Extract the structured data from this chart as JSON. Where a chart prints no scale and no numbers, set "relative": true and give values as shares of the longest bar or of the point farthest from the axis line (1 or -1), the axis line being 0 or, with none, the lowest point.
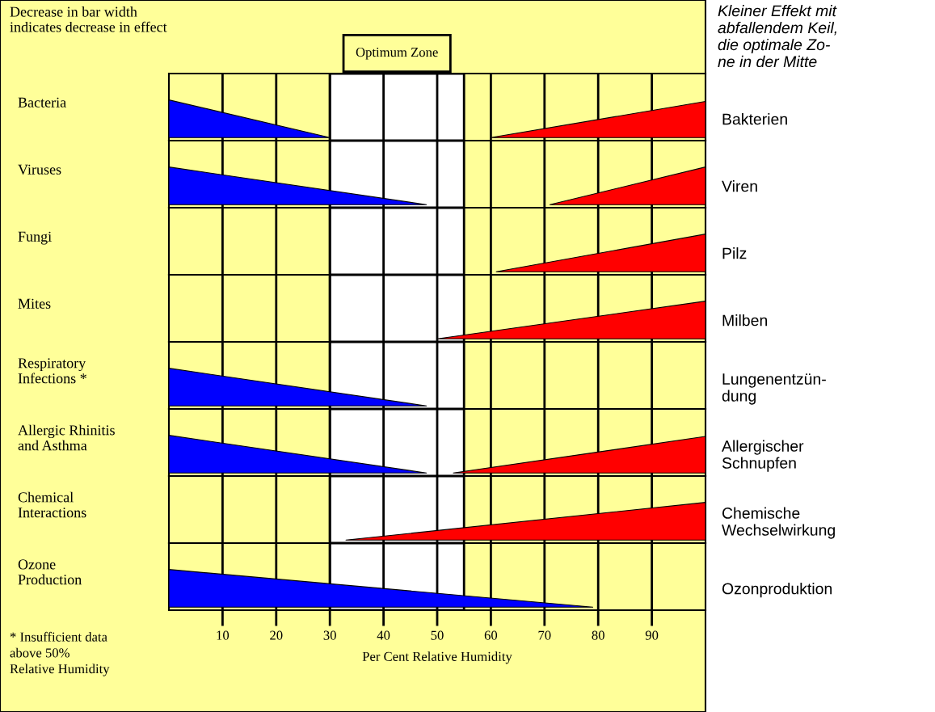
{
  "chart_data": [
    {
      "type": "area",
      "relative": true,
      "ylabel": "Bacteria",
      "xlim": [
        0,
        100
      ],
      "xticks": [
        10,
        20,
        30,
        40,
        50,
        60,
        70,
        80,
        90
      ],
      "grid": "x",
      "tick_labels": false,
      "bands": [
        {
          "axis": "x",
          "from": 30,
          "to": 55,
          "label": "Optimum Zone",
          "color": "#ffffff"
        }
      ],
      "annotations": [
        "Bakterien",
        "Decrease in bar width\nindicates decrease in effect",
        "Kleiner Effekt mit\nabfallendem Keil,\ndie optimale Zo-\nne in der Mitte"
      ],
      "series": [
        {
          "color": "#0000ff",
          "x": [
            0,
            30
          ],
          "values": [
            1,
            0
          ]
        },
        {
          "color": "#ff0000",
          "x": [
            60,
            100
          ],
          "values": [
            0,
            0.96
          ]
        }
      ]
    },
    {
      "type": "area",
      "relative": true,
      "ylabel": "Viruses",
      "xlim": [
        0,
        100
      ],
      "xticks": [
        10,
        20,
        30,
        40,
        50,
        60,
        70,
        80,
        90
      ],
      "grid": "x",
      "tick_labels": false,
      "bands": [
        {
          "axis": "x",
          "from": 30,
          "to": 55,
          "color": "#ffffff"
        }
      ],
      "annotations": [
        "Viren"
      ],
      "series": [
        {
          "color": "#0000ff",
          "x": [
            0,
            48
          ],
          "values": [
            1,
            0
          ]
        },
        {
          "color": "#ff0000",
          "x": [
            71,
            100
          ],
          "values": [
            0,
            1
          ]
        }
      ]
    },
    {
      "type": "area",
      "relative": true,
      "ylabel": "Fungi",
      "xlim": [
        0,
        100
      ],
      "xticks": [
        10,
        20,
        30,
        40,
        50,
        60,
        70,
        80,
        90
      ],
      "grid": "x",
      "tick_labels": false,
      "bands": [
        {
          "axis": "x",
          "from": 30,
          "to": 55,
          "color": "#ffffff"
        }
      ],
      "annotations": [
        "Pilz"
      ],
      "series": [
        {
          "color": "#ff0000",
          "x": [
            61,
            100
          ],
          "values": [
            0,
            1
          ]
        }
      ]
    },
    {
      "type": "area",
      "relative": true,
      "ylabel": "Mites",
      "xlim": [
        0,
        100
      ],
      "xticks": [
        10,
        20,
        30,
        40,
        50,
        60,
        70,
        80,
        90
      ],
      "grid": "x",
      "tick_labels": false,
      "bands": [
        {
          "axis": "x",
          "from": 30,
          "to": 55,
          "color": "#ffffff"
        }
      ],
      "annotations": [
        "Milben"
      ],
      "series": [
        {
          "color": "#ff0000",
          "x": [
            50,
            100
          ],
          "values": [
            0,
            1
          ]
        }
      ]
    },
    {
      "type": "area",
      "relative": true,
      "ylabel": "Respiratory\nInfections *",
      "xlim": [
        0,
        100
      ],
      "xticks": [
        10,
        20,
        30,
        40,
        50,
        60,
        70,
        80,
        90
      ],
      "grid": "x",
      "tick_labels": false,
      "bands": [
        {
          "axis": "x",
          "from": 30,
          "to": 55,
          "color": "#ffffff"
        }
      ],
      "annotations": [
        "Lungenentzün-\ndung"
      ],
      "series": [
        {
          "color": "#0000ff",
          "x": [
            0,
            48
          ],
          "values": [
            1,
            0
          ]
        }
      ]
    },
    {
      "type": "area",
      "relative": true,
      "ylabel": "Allergic Rhinitis\nand Asthma",
      "xlim": [
        0,
        100
      ],
      "xticks": [
        10,
        20,
        30,
        40,
        50,
        60,
        70,
        80,
        90
      ],
      "grid": "x",
      "tick_labels": false,
      "bands": [
        {
          "axis": "x",
          "from": 30,
          "to": 55,
          "color": "#ffffff"
        }
      ],
      "annotations": [
        "Allergischer\nSchnupfen"
      ],
      "series": [
        {
          "color": "#0000ff",
          "x": [
            0,
            48
          ],
          "values": [
            1,
            0
          ]
        },
        {
          "color": "#ff0000",
          "x": [
            53,
            100
          ],
          "values": [
            0,
            0.97
          ]
        }
      ]
    },
    {
      "type": "area",
      "relative": true,
      "ylabel": "Chemical\nInteractions",
      "xlim": [
        0,
        100
      ],
      "xticks": [
        10,
        20,
        30,
        40,
        50,
        60,
        70,
        80,
        90
      ],
      "grid": "x",
      "tick_labels": false,
      "bands": [
        {
          "axis": "x",
          "from": 30,
          "to": 55,
          "color": "#ffffff"
        }
      ],
      "annotations": [
        "Chemische\nWechselwirkung"
      ],
      "series": [
        {
          "color": "#ff0000",
          "x": [
            33,
            100
          ],
          "values": [
            0,
            1
          ]
        }
      ]
    },
    {
      "type": "area",
      "relative": true,
      "ylabel": "Ozone\nProduction",
      "xlabel": "Per Cent Relative Humidity",
      "xlim": [
        0,
        100
      ],
      "xticks": [
        10,
        20,
        30,
        40,
        50,
        60,
        70,
        80,
        90
      ],
      "grid": "x",
      "tick_labels": "x",
      "bands": [
        {
          "axis": "x",
          "from": 30,
          "to": 55,
          "color": "#ffffff"
        }
      ],
      "annotations": [
        "Ozonproduktion",
        "* Insufficient data\nabove 50%\nRelative Humidity"
      ],
      "series": [
        {
          "color": "#0000ff",
          "x": [
            0,
            79
          ],
          "values": [
            1,
            0
          ]
        }
      ]
    }
  ]
}
